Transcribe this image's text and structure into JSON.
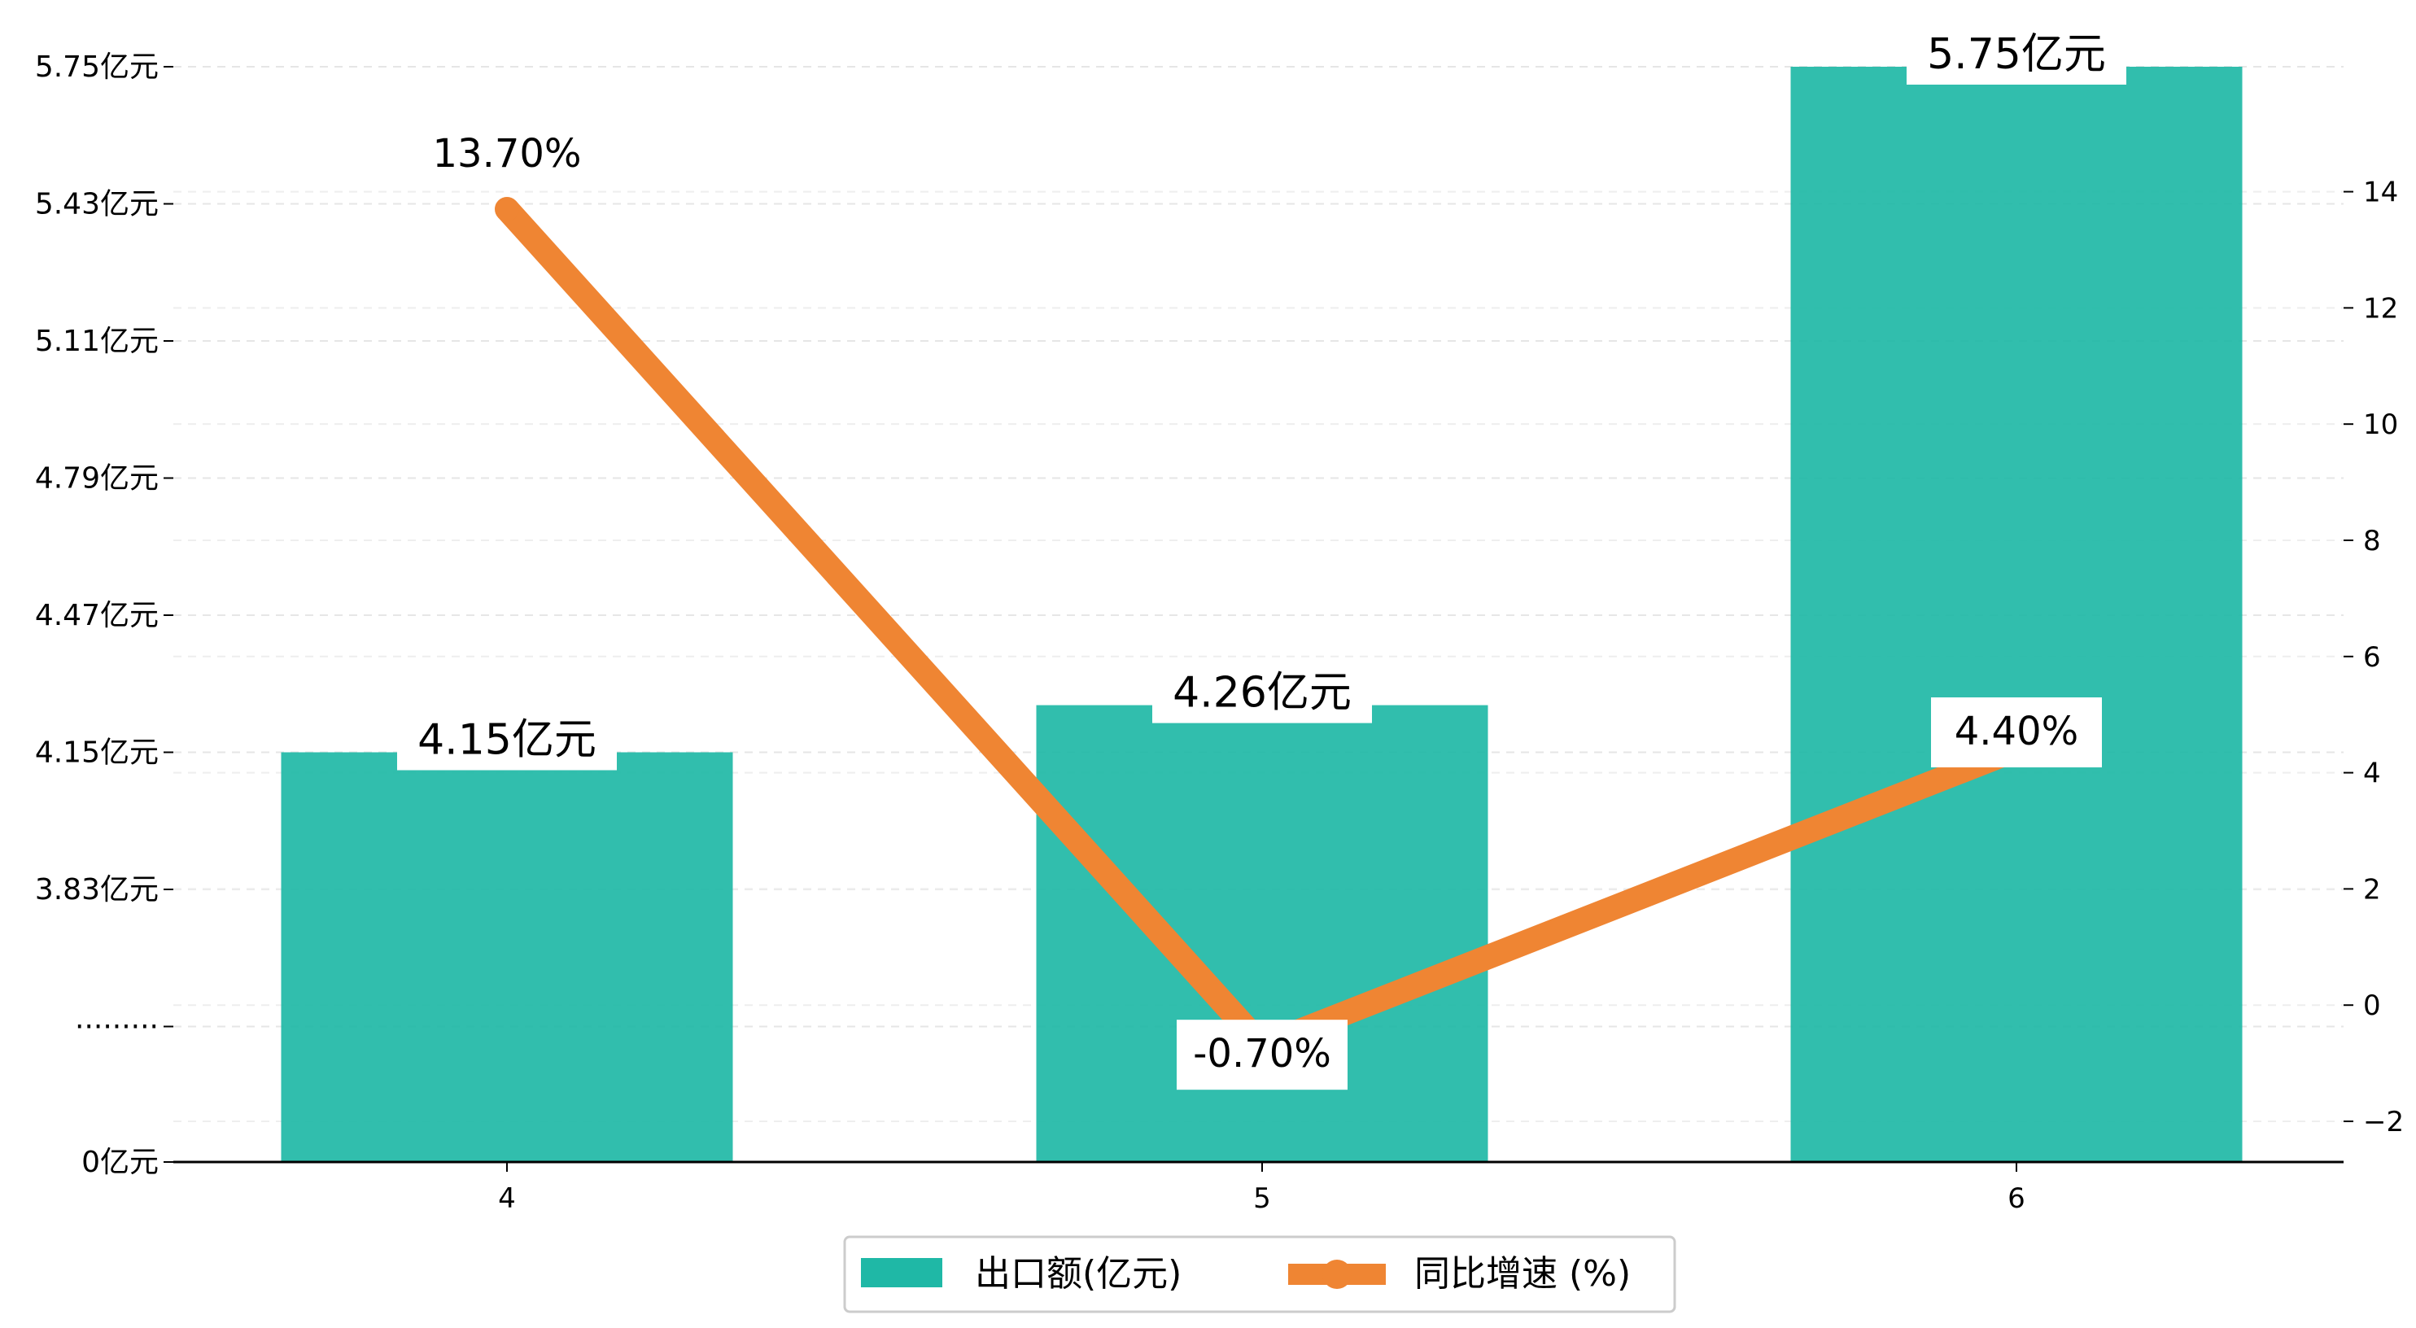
{
  "chart_data": {
    "type": "bar",
    "categories": [
      "4",
      "5",
      "6"
    ],
    "series": [
      {
        "name": "出口额(亿元)",
        "kind": "bar",
        "axis": "left",
        "values": [
          4.15,
          4.26,
          5.75
        ],
        "labels": [
          "4.15亿元",
          "4.26亿元",
          "5.75亿元"
        ],
        "color": "#1fb8a6"
      },
      {
        "name": "同比增速 (%)",
        "kind": "line",
        "axis": "right",
        "values": [
          13.7,
          -0.7,
          4.4
        ],
        "labels": [
          "13.70%",
          "-0.70%",
          "4.40%"
        ],
        "color": "#ef8533"
      }
    ],
    "left_axis": {
      "ticks": [
        "5.75亿元",
        "5.43亿元",
        "5.11亿元",
        "4.79亿元",
        "4.47亿元",
        "4.15亿元",
        "3.83亿元",
        "·········",
        "0亿元"
      ],
      "broken": true
    },
    "right_axis": {
      "ticks": [
        "14",
        "12",
        "10",
        "8",
        "6",
        "4",
        "2",
        "0",
        "−2"
      ],
      "range": [
        -2.7,
        16.0
      ]
    },
    "grid": true,
    "legend_position": "bottom-center"
  }
}
